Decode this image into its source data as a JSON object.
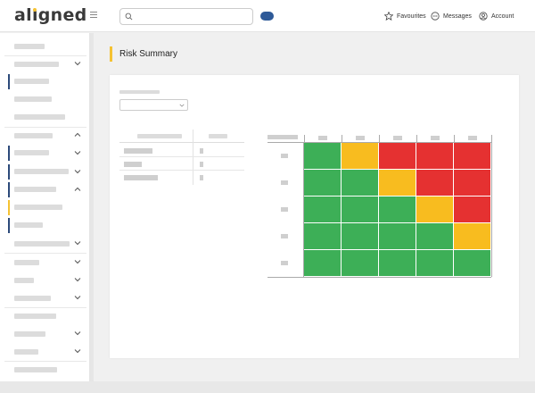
{
  "app": {
    "logo": "aligned"
  },
  "header": {
    "search": {
      "value": "",
      "placeholder": ""
    },
    "links": [
      {
        "label": "Favourites",
        "icon": "star-icon"
      },
      {
        "label": "Messages",
        "icon": "chat-icon"
      },
      {
        "label": "Account",
        "icon": "user-icon"
      }
    ],
    "toggle_color": "#2e5a98"
  },
  "sidebar": {
    "accent_color": "#2c4a7a",
    "active_accent_color": "#f5c232"
  },
  "page": {
    "title": "Risk Summary",
    "title_accent": "#f5c232"
  },
  "filter": {
    "selected": ""
  },
  "heatmap": {
    "colors": {
      "green": "#3daf57",
      "yellow": "#f8bc1f",
      "red": "#e53131"
    },
    "grid": [
      [
        "green",
        "yellow",
        "red",
        "red",
        "red"
      ],
      [
        "green",
        "green",
        "yellow",
        "red",
        "red"
      ],
      [
        "green",
        "green",
        "green",
        "yellow",
        "red"
      ],
      [
        "green",
        "green",
        "green",
        "green",
        "yellow"
      ],
      [
        "green",
        "green",
        "green",
        "green",
        "green"
      ]
    ]
  }
}
